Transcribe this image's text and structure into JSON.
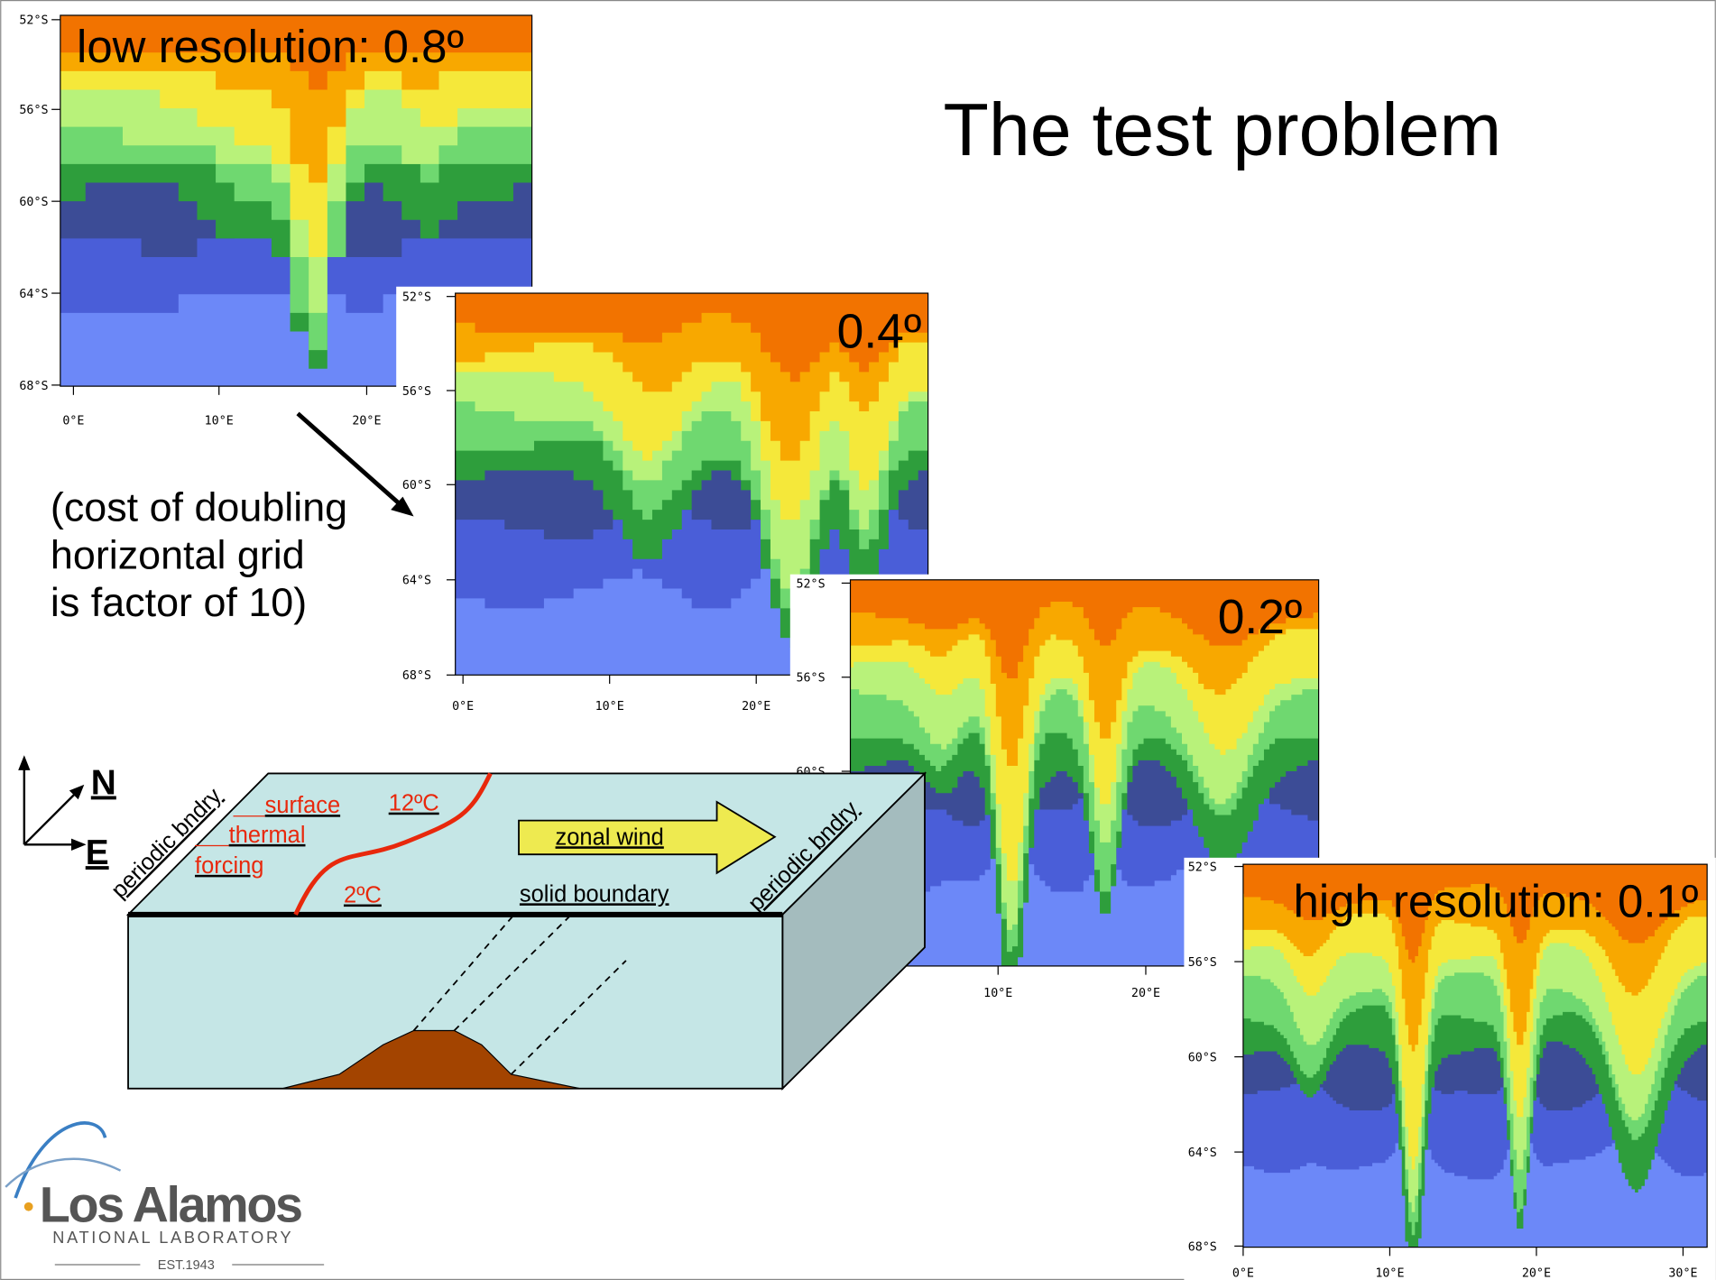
{
  "title": "The test problem",
  "panels": [
    {
      "label": "low resolution: 0.8º",
      "lat_ticks": [
        "52°S",
        "56°S",
        "60°S",
        "64°S",
        "68°S"
      ],
      "lon_ticks": [
        "0°E",
        "10°E",
        "20°E"
      ]
    },
    {
      "label": "0.4º",
      "lat_ticks": [
        "52°S",
        "56°S",
        "60°S",
        "64°S",
        "68°S"
      ],
      "lon_ticks": [
        "0°E",
        "10°E",
        "20°E"
      ]
    },
    {
      "label": "0.2º",
      "lat_ticks": [
        "52°S",
        "56°S",
        "60°S"
      ],
      "lon_ticks": [
        "10°E",
        "20°E"
      ]
    },
    {
      "label": "high resolution: 0.1º",
      "lat_ticks": [
        "52°S",
        "56°S",
        "60°S",
        "64°S",
        "68°S"
      ],
      "lon_ticks": [
        "0°E",
        "10°E",
        "20°E",
        "30°E"
      ]
    }
  ],
  "annotation": [
    "(cost of doubling",
    "horizontal grid",
    "is factor of 10)"
  ],
  "diagram": {
    "compass": {
      "north": "N",
      "east": "E"
    },
    "periodic_boundaries": [
      "periodic bndry",
      "periodic bndry"
    ],
    "forcing": [
      "surface",
      "thermal",
      "forcing"
    ],
    "warm_temperature": "12ºC",
    "cold_temperature": "2ºC",
    "wind": "zonal wind",
    "solid_boundary": "solid boundary"
  },
  "logo": {
    "name": "Los Alamos",
    "subtitle": "NATIONAL LABORATORY",
    "established": "EST.1943"
  }
}
